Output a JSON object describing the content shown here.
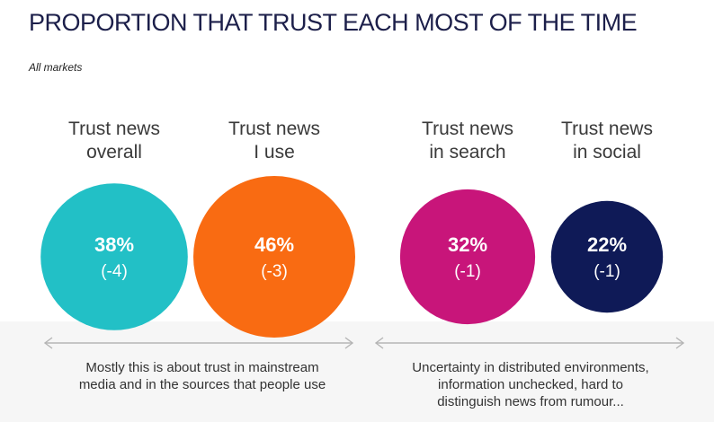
{
  "title": "PROPORTION THAT TRUST EACH MOST OF THE TIME",
  "subtitle": "All markets",
  "chart_data": {
    "type": "bubble",
    "series": [
      {
        "label_line1": "Trust news",
        "label_line2": "overall",
        "value": 38,
        "value_text": "38%",
        "change": -4,
        "change_text": "(-4)",
        "color": "#22c0c6"
      },
      {
        "label_line1": "Trust news",
        "label_line2": "I use",
        "value": 46,
        "value_text": "46%",
        "change": -3,
        "change_text": "(-3)",
        "color": "#f96b12"
      },
      {
        "label_line1": "Trust news",
        "label_line2": "in search",
        "value": 32,
        "value_text": "32%",
        "change": -1,
        "change_text": "(-1)",
        "color": "#c8157a"
      },
      {
        "label_line1": "Trust news",
        "label_line2": "in social",
        "value": 22,
        "value_text": "22%",
        "change": -1,
        "change_text": "(-1)",
        "color": "#0f1a57"
      }
    ]
  },
  "notes": {
    "left": {
      "line1": "Mostly this is about trust in mainstream",
      "line2": "media and in the sources that people use"
    },
    "right": {
      "line1": "Uncertainty in distributed environments,",
      "line2": "information unchecked, hard to",
      "line3": "distinguish news from rumour..."
    }
  },
  "colors": {
    "title": "#1c1f4a",
    "arrow": "#b5b5b5",
    "panel": "#f6f6f6"
  }
}
